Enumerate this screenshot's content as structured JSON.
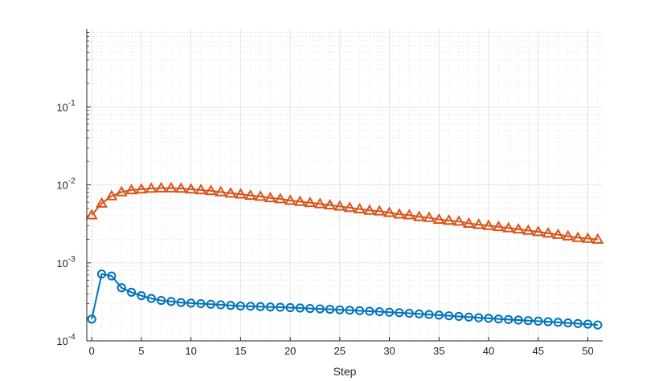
{
  "chart_data": {
    "type": "line",
    "title": "",
    "xlabel": "Step",
    "ylabel": "",
    "xlim": [
      -0.5,
      51.5
    ],
    "ylim": [
      0.0001,
      1
    ],
    "yscale": "log",
    "grid": true,
    "minor_grid": true,
    "x_ticks": [
      0,
      5,
      10,
      15,
      20,
      25,
      30,
      35,
      40,
      45,
      50
    ],
    "x_tick_labels": [
      "0",
      "5",
      "10",
      "15",
      "20",
      "25",
      "30",
      "35",
      "40",
      "45",
      "50"
    ],
    "y_ticks": [
      0.0001,
      0.001,
      0.01,
      0.1
    ],
    "y_tick_labels": [
      {
        "base": "10",
        "exp": "-4"
      },
      {
        "base": "10",
        "exp": "-3"
      },
      {
        "base": "10",
        "exp": "-2"
      },
      {
        "base": "10",
        "exp": "-1"
      }
    ],
    "x": [
      0,
      1,
      2,
      3,
      4,
      5,
      6,
      7,
      8,
      9,
      10,
      11,
      12,
      13,
      14,
      15,
      16,
      17,
      18,
      19,
      20,
      21,
      22,
      23,
      24,
      25,
      26,
      27,
      28,
      29,
      30,
      31,
      32,
      33,
      34,
      35,
      36,
      37,
      38,
      39,
      40,
      41,
      42,
      43,
      44,
      45,
      46,
      47,
      48,
      49,
      50,
      51
    ],
    "series": [
      {
        "color": "#0072BD",
        "marker": "circle",
        "values": [
          0.00019,
          0.00072,
          0.00068,
          0.00048,
          0.00042,
          0.00038,
          0.00035,
          0.00033,
          0.00032,
          0.00031,
          0.000305,
          0.0003,
          0.000295,
          0.00029,
          0.000285,
          0.00028,
          0.000278,
          0.000275,
          0.000272,
          0.00027,
          0.000267,
          0.000264,
          0.00026,
          0.000257,
          0.000254,
          0.00025,
          0.000247,
          0.000244,
          0.00024,
          0.000237,
          0.000233,
          0.00023,
          0.000226,
          0.000222,
          0.000218,
          0.000214,
          0.00021,
          0.000206,
          0.000202,
          0.000198,
          0.000195,
          0.000191,
          0.000188,
          0.000185,
          0.000182,
          0.000179,
          0.000176,
          0.000173,
          0.00017,
          0.000167,
          0.000164,
          0.00016
        ]
      },
      {
        "color": "#D95319",
        "marker": "triangle",
        "values": [
          0.0041,
          0.0058,
          0.0072,
          0.0081,
          0.0086,
          0.0088,
          0.009,
          0.0091,
          0.0091,
          0.009,
          0.0088,
          0.0086,
          0.0084,
          0.0081,
          0.0078,
          0.0076,
          0.0073,
          0.0071,
          0.0068,
          0.0066,
          0.0063,
          0.0061,
          0.0059,
          0.0057,
          0.0055,
          0.0053,
          0.0051,
          0.0049,
          0.0047,
          0.0046,
          0.0044,
          0.0042,
          0.0041,
          0.0039,
          0.0038,
          0.0036,
          0.0035,
          0.0034,
          0.0032,
          0.0031,
          0.003,
          0.0029,
          0.0028,
          0.0027,
          0.0026,
          0.0025,
          0.0024,
          0.0023,
          0.0022,
          0.0021,
          0.00205,
          0.002
        ]
      }
    ]
  }
}
